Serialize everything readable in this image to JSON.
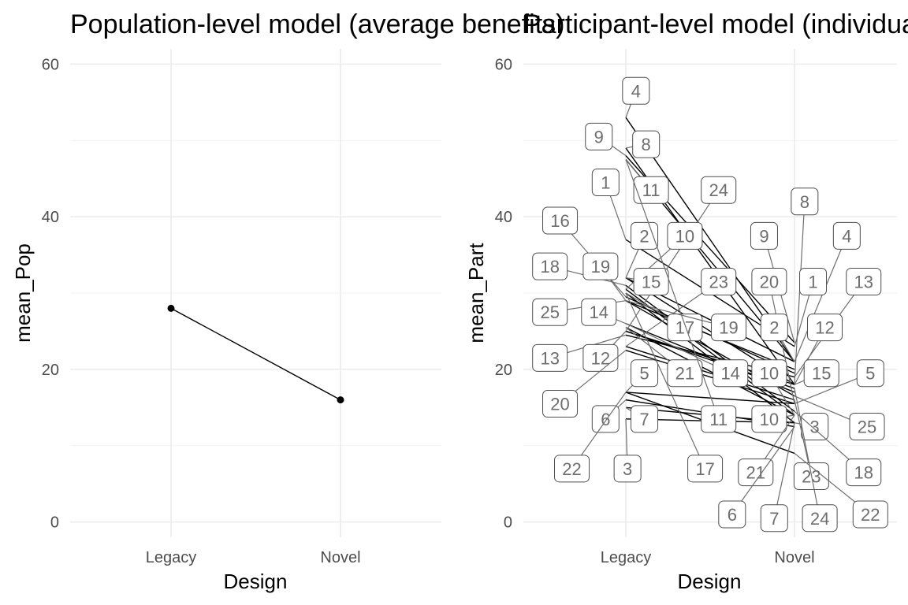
{
  "chart_data": [
    {
      "type": "line",
      "title": "Population-level model (average benefits)",
      "xlabel": "Design",
      "ylabel": "mean_Pop",
      "categories": [
        "Legacy",
        "Novel"
      ],
      "ylim": [
        -2,
        62
      ],
      "yticks": [
        0,
        20,
        40,
        60
      ],
      "grid": true,
      "series": [
        {
          "values": [
            28,
            16
          ]
        }
      ]
    },
    {
      "type": "line",
      "title": "Participant-level model (individual benefits)",
      "xlabel": "Design",
      "ylabel": "mean_Part",
      "categories": [
        "Legacy",
        "Novel"
      ],
      "ylim": [
        -2,
        62
      ],
      "yticks": [
        0,
        20,
        40,
        60
      ],
      "grid": true,
      "series": [
        {
          "name": "1",
          "values": [
            37,
            23
          ]
        },
        {
          "name": "2",
          "values": [
            32,
            21
          ]
        },
        {
          "name": "3",
          "values": [
            13.5,
            13
          ]
        },
        {
          "name": "4",
          "values": [
            53,
            21
          ]
        },
        {
          "name": "5",
          "values": [
            17,
            15.5
          ]
        },
        {
          "name": "6",
          "values": [
            16,
            12.5
          ]
        },
        {
          "name": "7",
          "values": [
            15,
            13
          ]
        },
        {
          "name": "8",
          "values": [
            49,
            18
          ]
        },
        {
          "name": "9",
          "values": [
            48,
            23.5
          ]
        },
        {
          "name": "10",
          "values": [
            30.5,
            14
          ]
        },
        {
          "name": "11",
          "values": [
            47.5,
            21
          ]
        },
        {
          "name": "12",
          "values": [
            25,
            18
          ]
        },
        {
          "name": "13",
          "values": [
            24.5,
            19
          ]
        },
        {
          "name": "14",
          "values": [
            26,
            17
          ]
        },
        {
          "name": "15",
          "values": [
            32,
            18
          ]
        },
        {
          "name": "16",
          "values": [
            29.5,
            19.5
          ]
        },
        {
          "name": "17",
          "values": [
            30,
            13
          ]
        },
        {
          "name": "18",
          "values": [
            31,
            14.5
          ]
        },
        {
          "name": "19",
          "values": [
            29,
            20
          ]
        },
        {
          "name": "20",
          "values": [
            22.5,
            15.5
          ]
        },
        {
          "name": "21",
          "values": [
            25.5,
            14
          ]
        },
        {
          "name": "22",
          "values": [
            17,
            9
          ]
        },
        {
          "name": "23",
          "values": [
            23,
            16
          ]
        },
        {
          "name": "24",
          "values": [
            25,
            17.5
          ]
        },
        {
          "name": "25",
          "values": [
            29,
            16.5
          ]
        }
      ],
      "labels": [
        {
          "text": "4",
          "x": "Legacy",
          "y": 53,
          "ax": 0.06,
          "ay": 56.5
        },
        {
          "text": "9",
          "x": "Legacy",
          "y": 48,
          "ax": -0.16,
          "ay": 50.5
        },
        {
          "text": "8",
          "x": "Legacy",
          "y": 49,
          "ax": 0.12,
          "ay": 49.5
        },
        {
          "text": "1",
          "x": "Legacy",
          "y": 37,
          "ax": -0.12,
          "ay": 44.5
        },
        {
          "text": "11",
          "x": "Legacy",
          "y": 47.5,
          "ax": 0.15,
          "ay": 43.5
        },
        {
          "text": "24",
          "x": "Legacy",
          "y": 25,
          "ax": 0.55,
          "ay": 43.5
        },
        {
          "text": "16",
          "x": "Legacy",
          "y": 29.5,
          "ax": -0.39,
          "ay": 39.5
        },
        {
          "text": "2",
          "x": "Legacy",
          "y": 32,
          "ax": 0.11,
          "ay": 37.5
        },
        {
          "text": "10",
          "x": "Legacy",
          "y": 30.5,
          "ax": 0.35,
          "ay": 37.5
        },
        {
          "text": "18",
          "x": "Legacy",
          "y": 31,
          "ax": -0.45,
          "ay": 33.5
        },
        {
          "text": "19",
          "x": "Legacy",
          "y": 29,
          "ax": -0.15,
          "ay": 33.5
        },
        {
          "text": "15",
          "x": "Legacy",
          "y": 32,
          "ax": 0.15,
          "ay": 31.5
        },
        {
          "text": "23",
          "x": "Legacy",
          "y": 23,
          "ax": 0.55,
          "ay": 31.5
        },
        {
          "text": "25",
          "x": "Legacy",
          "y": 29,
          "ax": -0.45,
          "ay": 27.5
        },
        {
          "text": "14",
          "x": "Legacy",
          "y": 26,
          "ax": -0.16,
          "ay": 27.5
        },
        {
          "text": "17",
          "x": "Legacy",
          "y": 30,
          "ax": 0.35,
          "ay": 25.5
        },
        {
          "text": "19",
          "x": "Legacy",
          "y": 29,
          "ax": 0.61,
          "ay": 25.5
        },
        {
          "text": "13",
          "x": "Legacy",
          "y": 24.5,
          "ax": -0.45,
          "ay": 21.5
        },
        {
          "text": "12",
          "x": "Legacy",
          "y": 25,
          "ax": -0.15,
          "ay": 21.5
        },
        {
          "text": "5",
          "x": "Legacy",
          "y": 17,
          "ax": 0.11,
          "ay": 19.5
        },
        {
          "text": "21",
          "x": "Legacy",
          "y": 25.5,
          "ax": 0.35,
          "ay": 19.5
        },
        {
          "text": "14",
          "x": "Legacy",
          "y": 26,
          "ax": 0.62,
          "ay": 19.5
        },
        {
          "text": "20",
          "x": "Legacy",
          "y": 22.5,
          "ax": -0.39,
          "ay": 15.5
        },
        {
          "text": "6",
          "x": "Legacy",
          "y": 16,
          "ax": -0.12,
          "ay": 13.5
        },
        {
          "text": "7",
          "x": "Legacy",
          "y": 15,
          "ax": 0.11,
          "ay": 13.5
        },
        {
          "text": "11",
          "x": "Legacy",
          "y": 47.5,
          "ax": 0.55,
          "ay": 13.5
        },
        {
          "text": "22",
          "x": "Legacy",
          "y": 17,
          "ax": -0.32,
          "ay": 7
        },
        {
          "text": "3",
          "x": "Legacy",
          "y": 13.5,
          "ax": 0.01,
          "ay": 7
        },
        {
          "text": "17",
          "x": "Legacy",
          "y": 30,
          "ax": 0.47,
          "ay": 7
        },
        {
          "text": "8",
          "x": "Novel",
          "y": 18,
          "ax": 0.06,
          "ay": 42
        },
        {
          "text": "9",
          "x": "Novel",
          "y": 23.5,
          "ax": -0.18,
          "ay": 37.5
        },
        {
          "text": "4",
          "x": "Novel",
          "y": 21,
          "ax": 0.31,
          "ay": 37.5
        },
        {
          "text": "20",
          "x": "Novel",
          "y": 15.5,
          "ax": -0.15,
          "ay": 31.5
        },
        {
          "text": "1",
          "x": "Novel",
          "y": 23,
          "ax": 0.11,
          "ay": 31.5
        },
        {
          "text": "13",
          "x": "Novel",
          "y": 19,
          "ax": 0.41,
          "ay": 31.5
        },
        {
          "text": "2",
          "x": "Novel",
          "y": 21,
          "ax": -0.12,
          "ay": 25.5
        },
        {
          "text": "12",
          "x": "Novel",
          "y": 18,
          "ax": 0.18,
          "ay": 25.5
        },
        {
          "text": "10",
          "x": "Novel",
          "y": 14,
          "ax": -0.15,
          "ay": 19.5
        },
        {
          "text": "15",
          "x": "Novel",
          "y": 18,
          "ax": 0.16,
          "ay": 19.5
        },
        {
          "text": "5",
          "x": "Novel",
          "y": 15.5,
          "ax": 0.45,
          "ay": 19.5
        },
        {
          "text": "10",
          "x": "Novel",
          "y": 14,
          "ax": -0.15,
          "ay": 13.5
        },
        {
          "text": "3",
          "x": "Novel",
          "y": 13,
          "ax": 0.12,
          "ay": 12.5
        },
        {
          "text": "25",
          "x": "Novel",
          "y": 16.5,
          "ax": 0.43,
          "ay": 12.5
        },
        {
          "text": "21",
          "x": "Novel",
          "y": 14,
          "ax": -0.23,
          "ay": 6.5
        },
        {
          "text": "23",
          "x": "Novel",
          "y": 16,
          "ax": 0.1,
          "ay": 6
        },
        {
          "text": "18",
          "x": "Novel",
          "y": 14.5,
          "ax": 0.41,
          "ay": 6.5
        },
        {
          "text": "6",
          "x": "Novel",
          "y": 12.5,
          "ax": -0.37,
          "ay": 1
        },
        {
          "text": "7",
          "x": "Novel",
          "y": 13,
          "ax": -0.12,
          "ay": 0.5
        },
        {
          "text": "24",
          "x": "Novel",
          "y": 17.5,
          "ax": 0.15,
          "ay": 0.5
        },
        {
          "text": "22",
          "x": "Novel",
          "y": 9,
          "ax": 0.45,
          "ay": 1
        }
      ]
    }
  ]
}
